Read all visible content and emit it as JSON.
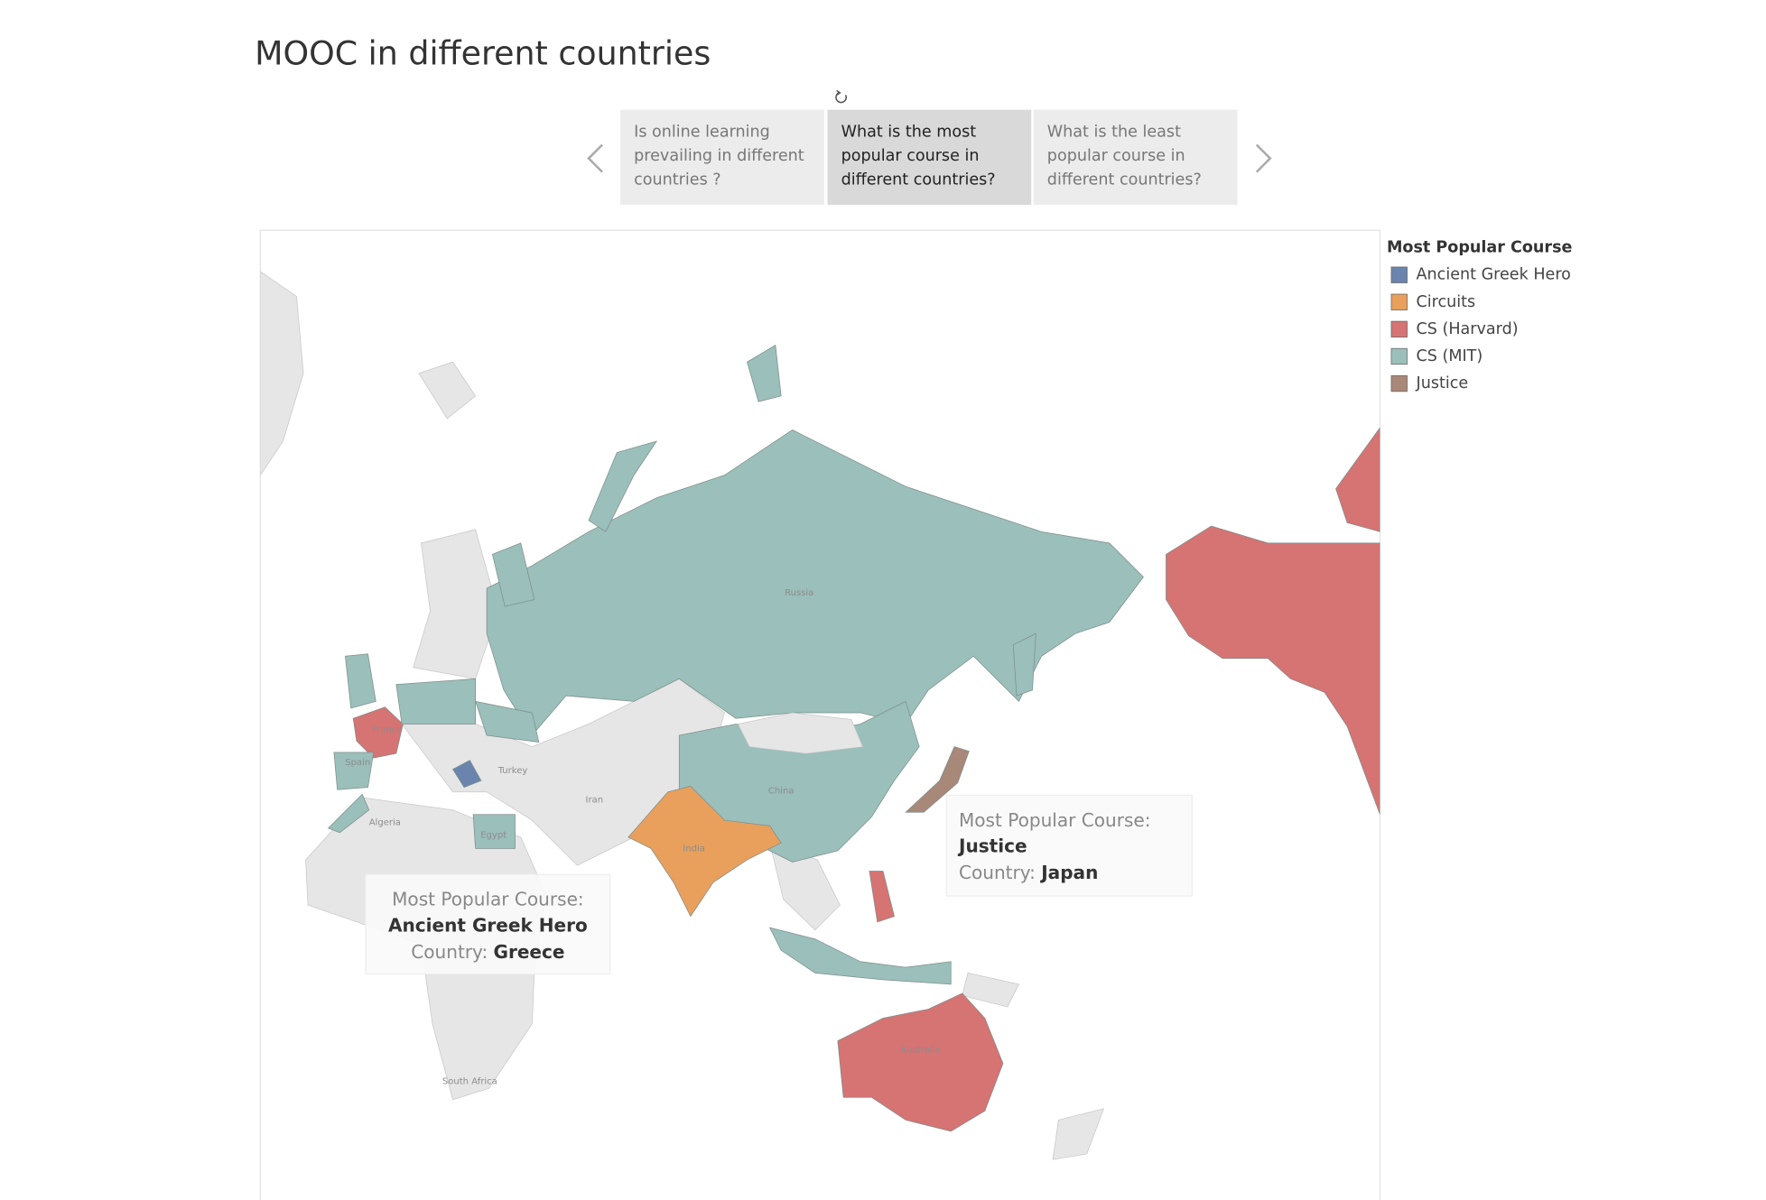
{
  "title": "MOOC in different countries",
  "story_points": [
    "Is online learning prevailing in different countries ?",
    "What is the most popular course in different countries?",
    "What is the least popular course in different countries?"
  ],
  "active_story_point": 1,
  "legend": {
    "title": "Most Popular Course",
    "items": [
      {
        "name": "Ancient Greek Hero",
        "color": "#6a84ad"
      },
      {
        "name": "Circuits",
        "color": "#e8a05c"
      },
      {
        "name": "CS (Harvard)",
        "color": "#d67373"
      },
      {
        "name": "CS (MIT)",
        "color": "#9bbfbb"
      },
      {
        "name": "Justice",
        "color": "#a88878"
      }
    ]
  },
  "map_labels": [
    "Russia",
    "China",
    "India",
    "Turkey",
    "Iran",
    "Algeria",
    "Egypt",
    "France",
    "Spain",
    "Australia",
    "South Africa"
  ],
  "tooltips": [
    {
      "course_label": "Most Popular Course:",
      "course": "Ancient Greek Hero",
      "country_label": "Country:",
      "country": "Greece"
    },
    {
      "course_label": "Most Popular Course:",
      "course": "Justice",
      "country_label": "Country:",
      "country": "Japan"
    }
  ]
}
